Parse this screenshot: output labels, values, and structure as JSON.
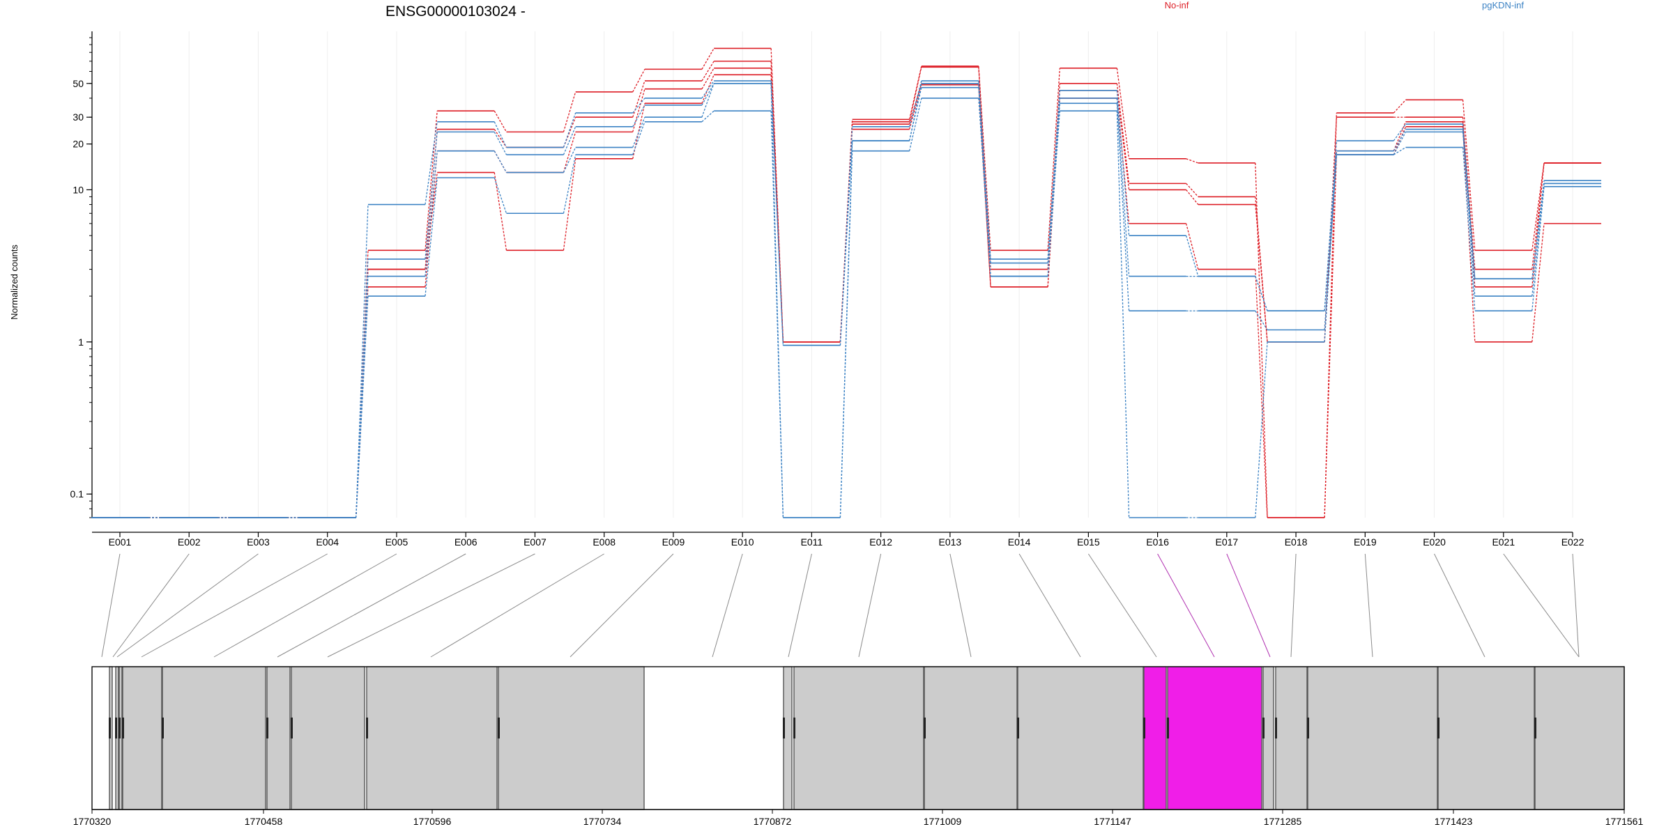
{
  "header": {
    "title": "ENSG00000103024 -",
    "legend": [
      {
        "name": "No-inf",
        "color": "#dd1c24"
      },
      {
        "name": "pgKDN-inf",
        "color": "#3b82c4"
      }
    ]
  },
  "chart_data": {
    "type": "line",
    "title": "ENSG00000103024 -",
    "ylabel": "Normalized counts",
    "yscale": "log",
    "ylim": [
      0.07,
      110
    ],
    "yticks": [
      {
        "v": 0.1,
        "label": "0.1"
      },
      {
        "v": 1,
        "label": "1"
      },
      {
        "v": 10,
        "label": "10"
      },
      {
        "v": 20,
        "label": "20"
      },
      {
        "v": 30,
        "label": "30"
      },
      {
        "v": 50,
        "label": "50"
      }
    ],
    "categories": [
      "E001",
      "E002",
      "E003",
      "E004",
      "E005",
      "E006",
      "E007",
      "E008",
      "E009",
      "E010",
      "E011",
      "E012",
      "E013",
      "E014",
      "E015",
      "E016",
      "E017",
      "E018",
      "E019",
      "E020",
      "E021",
      "E022"
    ],
    "grid": "vertical",
    "legend_position": "top",
    "series": [
      {
        "group": "No-inf",
        "color": "#dd1c24",
        "values": [
          0.07,
          0.07,
          0.07,
          0.07,
          4,
          33,
          24,
          44,
          62,
          85,
          1,
          29,
          65,
          4,
          63,
          16,
          15,
          0.07,
          32,
          39,
          4,
          15
        ]
      },
      {
        "group": "No-inf",
        "color": "#dd1c24",
        "values": [
          0.07,
          0.07,
          0.07,
          0.07,
          3,
          25,
          19,
          30,
          52,
          70,
          1,
          28,
          64,
          3,
          50,
          11,
          9,
          1,
          30,
          30,
          3,
          15
        ]
      },
      {
        "group": "No-inf",
        "color": "#dd1c24",
        "values": [
          0.07,
          0.07,
          0.07,
          0.07,
          2.3,
          18,
          13,
          24,
          46,
          63,
          1,
          27,
          50,
          2.3,
          45,
          10,
          8,
          1,
          18,
          28,
          2.3,
          15
        ]
      },
      {
        "group": "No-inf",
        "color": "#dd1c24",
        "values": [
          0.07,
          0.07,
          0.07,
          0.07,
          3,
          13,
          4,
          16,
          37,
          57,
          1,
          25,
          49,
          2.3,
          40,
          6,
          3,
          0.07,
          17,
          26,
          1,
          6
        ]
      },
      {
        "group": "pgKDN-inf",
        "color": "#3b82c4",
        "values": [
          0.07,
          0.07,
          0.07,
          0.07,
          8,
          28,
          19,
          32,
          40,
          52,
          0.95,
          26,
          52,
          3.5,
          45,
          5,
          2.7,
          1.6,
          21,
          27,
          2.6,
          11.5
        ]
      },
      {
        "group": "pgKDN-inf",
        "color": "#3b82c4",
        "values": [
          0.07,
          0.07,
          0.07,
          0.07,
          3.5,
          24,
          17,
          26,
          36,
          50,
          0.95,
          21,
          50,
          3.3,
          40,
          2.7,
          2.7,
          1.6,
          18,
          25,
          2.6,
          11
        ]
      },
      {
        "group": "pgKDN-inf",
        "color": "#3b82c4",
        "values": [
          0.07,
          0.07,
          0.07,
          0.07,
          2.7,
          18,
          13,
          19,
          30,
          50,
          0.07,
          21,
          47,
          2.7,
          37,
          1.6,
          1.6,
          1.2,
          17,
          24,
          2,
          11
        ]
      },
      {
        "group": "pgKDN-inf",
        "color": "#3b82c4",
        "values": [
          0.07,
          0.07,
          0.07,
          0.07,
          2,
          12,
          7,
          17,
          28,
          33,
          0.07,
          18,
          40,
          2.7,
          33,
          0.07,
          0.07,
          1,
          17,
          19,
          1.6,
          10.5
        ]
      }
    ],
    "gene_model": {
      "xaxis_ticks": [
        "1770320",
        "1770458",
        "1770596",
        "1770734",
        "1770872",
        "1771009",
        "1771147",
        "1771285",
        "1771423",
        "1771561"
      ],
      "highlighted_exons": [
        "E016",
        "E017"
      ],
      "highlight_color": "#f01ee8",
      "exon_color": "#cccccc"
    }
  }
}
